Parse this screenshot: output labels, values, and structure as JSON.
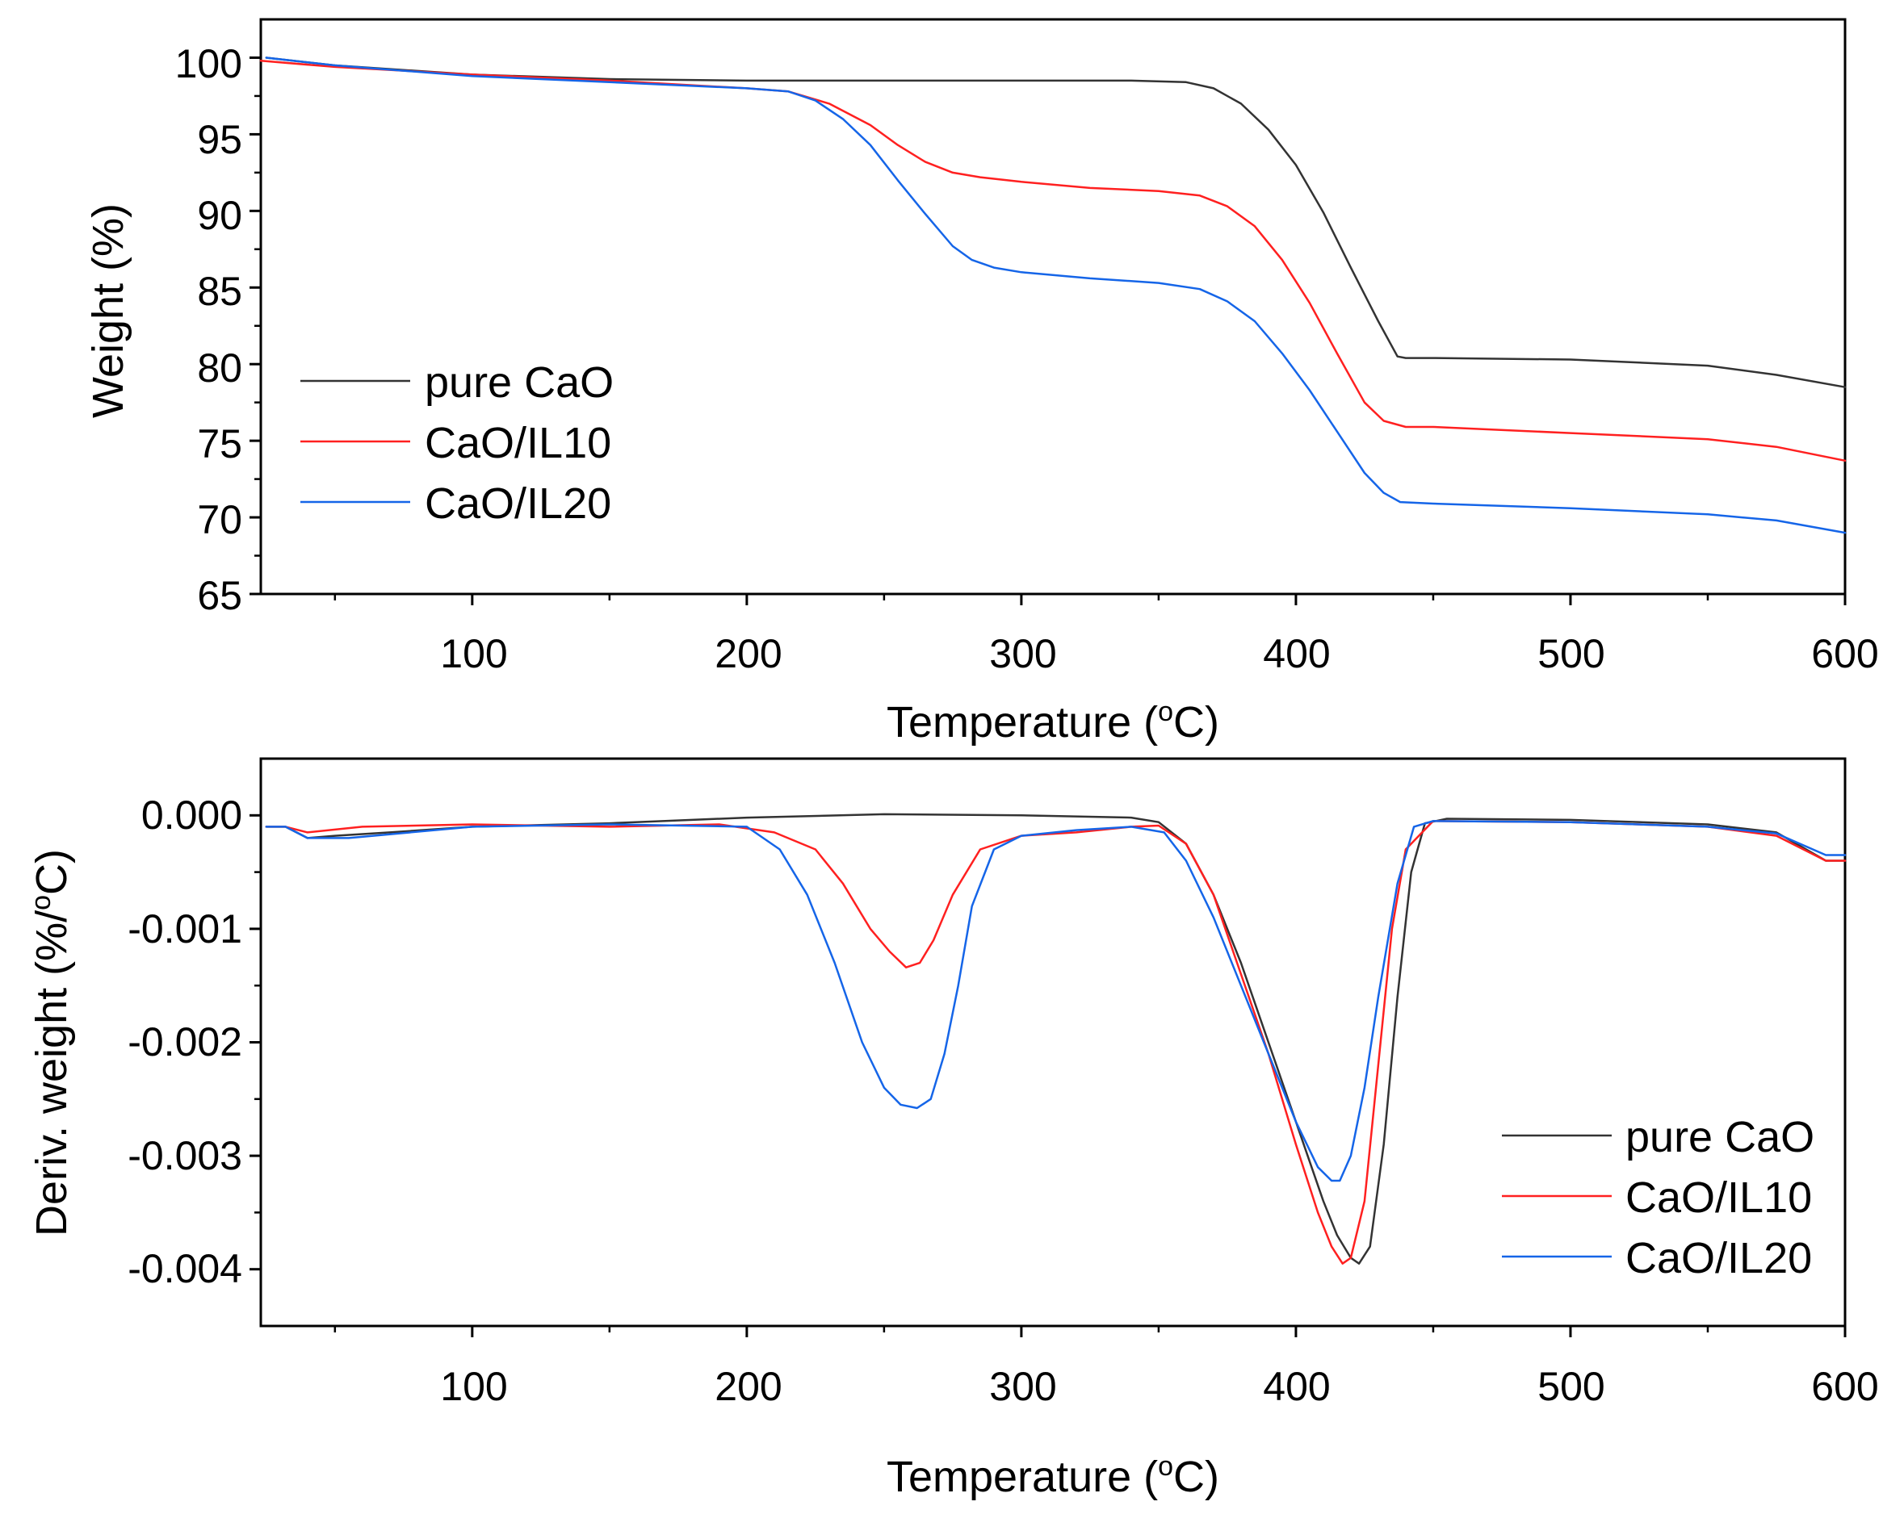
{
  "colors": {
    "pure_cao": "#333333",
    "cao_il10": "#ff2020",
    "cao_il20": "#1565e8"
  },
  "chart_data": [
    {
      "type": "line",
      "title": "",
      "xlabel_main": "Temperature (",
      "xlabel_sup": "o",
      "xlabel_end": "C)",
      "ylabel": "Weight (%)",
      "xlim": [
        23,
        600
      ],
      "ylim": [
        65,
        102.5
      ],
      "xticks": [
        100,
        200,
        300,
        400,
        500,
        600
      ],
      "xtick_labels": [
        "100",
        "200",
        "300",
        "400",
        "500",
        "600"
      ],
      "xminor": [
        50,
        150,
        250,
        350,
        450,
        550
      ],
      "yticks": [
        65,
        70,
        75,
        80,
        85,
        90,
        95,
        100
      ],
      "ytick_labels": [
        "65",
        "70",
        "75",
        "80",
        "85",
        "90",
        "95",
        "100"
      ],
      "yminor": [
        67.5,
        72.5,
        77.5,
        82.5,
        87.5,
        92.5,
        97.5
      ],
      "legend_position": "center-left",
      "series": [
        {
          "name": "pure CaO",
          "color_key": "pure_cao",
          "x": [
            25,
            50,
            100,
            150,
            200,
            250,
            300,
            340,
            360,
            370,
            380,
            390,
            400,
            410,
            420,
            430,
            437,
            440,
            450,
            500,
            550,
            575,
            600
          ],
          "y": [
            100,
            99.5,
            98.9,
            98.6,
            98.5,
            98.5,
            98.5,
            98.5,
            98.4,
            98.0,
            97.0,
            95.3,
            93.0,
            89.9,
            86.3,
            82.8,
            80.5,
            80.4,
            80.4,
            80.3,
            79.9,
            79.3,
            78.5
          ]
        },
        {
          "name": "CaO/IL10",
          "color_key": "cao_il10",
          "x": [
            23,
            50,
            100,
            150,
            200,
            215,
            230,
            245,
            255,
            265,
            275,
            285,
            300,
            325,
            350,
            365,
            375,
            385,
            395,
            405,
            415,
            425,
            432,
            440,
            450,
            500,
            550,
            575,
            600
          ],
          "y": [
            99.8,
            99.4,
            98.9,
            98.5,
            98.0,
            97.8,
            97.0,
            95.6,
            94.3,
            93.2,
            92.5,
            92.2,
            91.9,
            91.5,
            91.3,
            91.0,
            90.3,
            89.0,
            86.8,
            84.0,
            80.7,
            77.5,
            76.3,
            75.9,
            75.9,
            75.5,
            75.1,
            74.6,
            73.7
          ]
        },
        {
          "name": "CaO/IL20",
          "color_key": "cao_il20",
          "x": [
            25,
            50,
            100,
            150,
            200,
            215,
            225,
            235,
            245,
            255,
            265,
            275,
            282,
            290,
            300,
            325,
            350,
            365,
            375,
            385,
            395,
            405,
            415,
            425,
            432,
            438,
            450,
            500,
            550,
            575,
            600
          ],
          "y": [
            100,
            99.5,
            98.8,
            98.4,
            98.0,
            97.8,
            97.2,
            96.0,
            94.3,
            92.0,
            89.8,
            87.7,
            86.8,
            86.3,
            86.0,
            85.6,
            85.3,
            84.9,
            84.1,
            82.8,
            80.7,
            78.3,
            75.6,
            72.9,
            71.6,
            71.0,
            70.9,
            70.6,
            70.2,
            69.8,
            69.0
          ]
        }
      ]
    },
    {
      "type": "line",
      "title": "",
      "xlabel_main": "Temperature (",
      "xlabel_sup": "o",
      "xlabel_end": "C)",
      "ylabel": "Deriv. weight (%/°C)",
      "ylabel_main": "Deriv. weight (%/",
      "ylabel_sup": "o",
      "ylabel_end": "C)",
      "xlim": [
        23,
        600
      ],
      "ylim": [
        -0.0045,
        0.0005
      ],
      "xticks": [
        100,
        200,
        300,
        400,
        500,
        600
      ],
      "xtick_labels": [
        "100",
        "200",
        "300",
        "400",
        "500",
        "600"
      ],
      "xminor": [
        50,
        150,
        250,
        350,
        450,
        550
      ],
      "yticks": [
        0,
        -0.001,
        -0.002,
        -0.003,
        -0.004
      ],
      "ytick_labels": [
        "0.000",
        "-0.001",
        "-0.002",
        "-0.003",
        "-0.004"
      ],
      "yminor": [
        -0.0005,
        -0.0015,
        -0.0025,
        -0.0035
      ],
      "legend_position": "bottom-right",
      "series": [
        {
          "name": "pure CaO",
          "color_key": "pure_cao",
          "x": [
            25,
            32,
            40,
            50,
            70,
            100,
            150,
            200,
            250,
            300,
            340,
            350,
            360,
            370,
            380,
            390,
            400,
            410,
            415,
            420,
            423,
            427,
            432,
            437,
            442,
            447,
            455,
            500,
            550,
            575,
            593,
            600
          ],
          "y": [
            -0.0001,
            -0.0001,
            -0.0002,
            -0.00018,
            -0.00015,
            -0.0001,
            -7e-05,
            -2e-05,
            1e-05,
            0.0,
            -2e-05,
            -6e-05,
            -0.00025,
            -0.0007,
            -0.0013,
            -0.002,
            -0.0027,
            -0.0034,
            -0.0037,
            -0.0039,
            -0.00395,
            -0.0038,
            -0.0029,
            -0.0016,
            -0.0005,
            -7e-05,
            -3e-05,
            -4e-05,
            -8e-05,
            -0.00015,
            -0.0004,
            -0.0004
          ]
        },
        {
          "name": "CaO/IL10",
          "color_key": "cao_il10",
          "x": [
            25,
            32,
            40,
            60,
            100,
            150,
            190,
            210,
            225,
            235,
            245,
            252,
            258,
            263,
            268,
            275,
            285,
            300,
            320,
            340,
            350,
            360,
            370,
            380,
            390,
            400,
            408,
            413,
            417,
            420,
            425,
            430,
            435,
            440,
            450,
            500,
            550,
            575,
            593,
            600
          ],
          "y": [
            -0.0001,
            -0.0001,
            -0.00015,
            -0.0001,
            -8e-05,
            -0.0001,
            -8e-05,
            -0.00015,
            -0.0003,
            -0.0006,
            -0.001,
            -0.0012,
            -0.00134,
            -0.0013,
            -0.0011,
            -0.0007,
            -0.0003,
            -0.00018,
            -0.00015,
            -0.0001,
            -9e-05,
            -0.00025,
            -0.0007,
            -0.0014,
            -0.0021,
            -0.0029,
            -0.0035,
            -0.0038,
            -0.00395,
            -0.0039,
            -0.0034,
            -0.0022,
            -0.001,
            -0.0003,
            -5e-05,
            -6e-05,
            -0.0001,
            -0.00018,
            -0.0004,
            -0.0004
          ]
        },
        {
          "name": "CaO/IL20",
          "color_key": "cao_il20",
          "x": [
            25,
            32,
            40,
            55,
            100,
            150,
            200,
            212,
            222,
            232,
            242,
            250,
            256,
            262,
            267,
            272,
            277,
            282,
            290,
            300,
            320,
            340,
            352,
            360,
            370,
            380,
            390,
            400,
            408,
            413,
            416,
            420,
            425,
            430,
            437,
            443,
            450,
            500,
            550,
            575,
            593,
            600
          ],
          "y": [
            -0.0001,
            -0.0001,
            -0.0002,
            -0.0002,
            -0.0001,
            -8e-05,
            -0.0001,
            -0.0003,
            -0.0007,
            -0.0013,
            -0.002,
            -0.0024,
            -0.00255,
            -0.00258,
            -0.0025,
            -0.0021,
            -0.0015,
            -0.0008,
            -0.0003,
            -0.00018,
            -0.00013,
            -0.0001,
            -0.00015,
            -0.0004,
            -0.0009,
            -0.0015,
            -0.0021,
            -0.0027,
            -0.0031,
            -0.00322,
            -0.00322,
            -0.003,
            -0.0024,
            -0.0016,
            -0.0006,
            -0.0001,
            -5e-05,
            -6e-05,
            -0.0001,
            -0.00016,
            -0.00035,
            -0.00035
          ]
        }
      ]
    }
  ]
}
